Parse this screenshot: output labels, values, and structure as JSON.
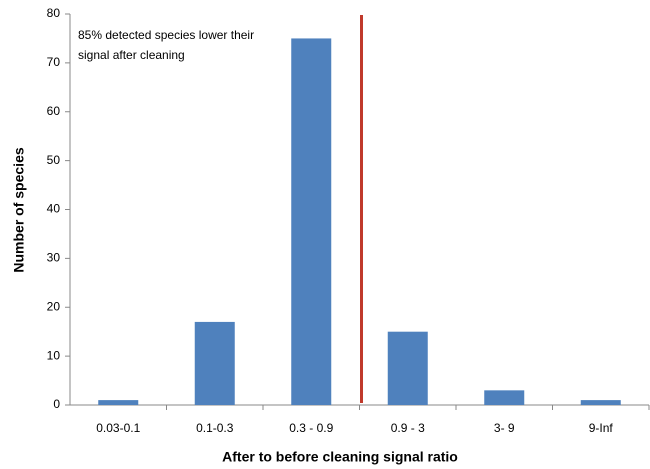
{
  "chart_data": {
    "type": "bar",
    "xlabel": "After to before cleaning signal ratio",
    "ylabel": "Number of species",
    "annotation": [
      "85% detected species lower their",
      "signal after cleaning"
    ],
    "categories": [
      "0.03-0.1",
      "0.1-0.3",
      "0.3 - 0.9",
      "0.9 - 3",
      "3- 9",
      "9-Inf"
    ],
    "values": [
      1,
      17,
      75,
      15,
      3,
      1
    ],
    "color": "#4f81bd",
    "ylim": [
      0,
      80
    ],
    "yticks": [
      0,
      10,
      20,
      30,
      40,
      50,
      60,
      70,
      80
    ],
    "grid": false
  }
}
